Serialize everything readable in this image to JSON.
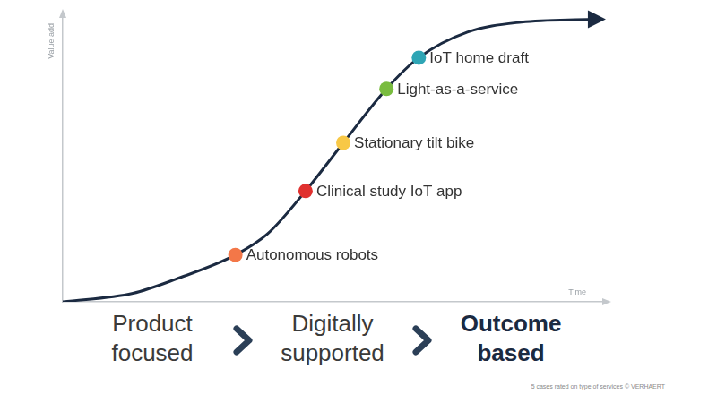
{
  "chart_data": {
    "type": "line",
    "x_label": "Time",
    "y_label": "Value add",
    "xlim": [
      0,
      100
    ],
    "ylim": [
      0,
      100
    ],
    "grid": false,
    "tick_labels": false,
    "series": [
      {
        "type": "line",
        "color": "#1b2a41",
        "marker": "none",
        "x": [
          0,
          13,
          21,
          32,
          38,
          45,
          52,
          60,
          66,
          75,
          85,
          98
        ],
        "values": [
          0,
          3,
          8,
          16.5,
          24,
          39,
          56,
          75,
          86,
          95,
          98.5,
          99.5
        ]
      },
      {
        "type": "scatter",
        "marker": "circle",
        "colors": [
          "#f37748",
          "#e0312f",
          "#f8c846",
          "#79bc3f",
          "#2ea5b5"
        ],
        "x": [
          32,
          45,
          52,
          60,
          66
        ],
        "values": [
          16.5,
          39,
          56,
          75,
          86
        ],
        "point_labels": [
          "Autonomous robots",
          "Clinical study IoT app",
          "Stationary tilt bike",
          "Light-as-a-service",
          "IoT home draft"
        ]
      }
    ]
  },
  "stages": [
    "Product focused",
    "Digitally supported",
    "Outcome based"
  ],
  "footer": "5 cases rated on type of services © VERHAERT"
}
